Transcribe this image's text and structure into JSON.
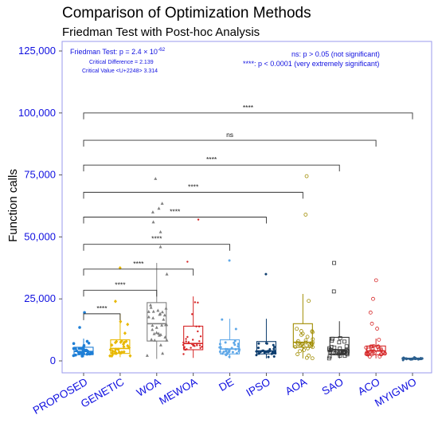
{
  "chart_data": {
    "type": "boxplot",
    "title": "Comparison of Optimization Methods",
    "subtitle": "Friedman Test with Post-hoc Analysis",
    "ylabel": "Function calls",
    "xlabel": "",
    "ylim": [
      -3000,
      130000
    ],
    "yticks": [
      0,
      25000,
      50000,
      75000,
      100000,
      125000
    ],
    "ytick_labels": [
      "0",
      "25,000",
      "50,000",
      "75,000",
      "100,000",
      "125,000"
    ],
    "grid": false,
    "categories": [
      "PROPOSED",
      "GENETIC",
      "WOA",
      "MEWOA",
      "DE",
      "IPSO",
      "AOA",
      "SAO",
      "ACO",
      "MYIGWO"
    ],
    "colors": [
      "#1f7fd6",
      "#e8b800",
      "#808080",
      "#d62728",
      "#5fa8e8",
      "#0d3d6e",
      "#a08c00",
      "#333333",
      "#d62728",
      "#2b5f8e"
    ],
    "markers": [
      "circle",
      "diamond",
      "triangle",
      "star",
      "dot",
      "dot",
      "circle-open",
      "square-open",
      "circle-open",
      "dot"
    ],
    "boxes": [
      {
        "min": 1500,
        "q1": 2500,
        "median": 3800,
        "q3": 5500,
        "max": 9000,
        "outliers": [
          13500,
          19500
        ]
      },
      {
        "min": 1500,
        "q1": 3000,
        "median": 5000,
        "q3": 8500,
        "max": 19000,
        "outliers": [
          24000,
          37500
        ]
      },
      {
        "min": 800,
        "q1": 8000,
        "median": 15000,
        "q3": 23500,
        "max": 39500,
        "outliers": [
          46000,
          52000,
          56000,
          60000,
          61500,
          63500,
          73500
        ]
      },
      {
        "min": 1200,
        "q1": 4500,
        "median": 7000,
        "q3": 14000,
        "max": 26000,
        "outliers": [
          40000,
          57000
        ]
      },
      {
        "min": 1000,
        "q1": 2800,
        "median": 4800,
        "q3": 8500,
        "max": 17000,
        "outliers": [
          40500
        ]
      },
      {
        "min": 1000,
        "q1": 2800,
        "median": 4000,
        "q3": 7800,
        "max": 17000,
        "outliers": [
          35000
        ]
      },
      {
        "min": 1000,
        "q1": 5500,
        "median": 7500,
        "q3": 15000,
        "max": 27000,
        "outliers": [
          59000,
          74500
        ]
      },
      {
        "min": 1000,
        "q1": 2500,
        "median": 4500,
        "q3": 9500,
        "max": 16000,
        "outliers": [
          28000,
          39500
        ]
      },
      {
        "min": 1000,
        "q1": 2500,
        "median": 4000,
        "q3": 6000,
        "max": 9000,
        "outliers": [
          13000,
          15000,
          19500,
          25000,
          32500
        ]
      },
      {
        "min": 300,
        "q1": 700,
        "median": 900,
        "q3": 1100,
        "max": 1400,
        "outliers": []
      }
    ],
    "comparisons": [
      {
        "from": "PROPOSED",
        "to": "GENETIC",
        "label": "****",
        "y": 19000
      },
      {
        "from": "PROPOSED",
        "to": "WOA",
        "label": "****",
        "y": 28500
      },
      {
        "from": "PROPOSED",
        "to": "MEWOA",
        "label": "****",
        "y": 37000
      },
      {
        "from": "PROPOSED",
        "to": "DE",
        "label": "****",
        "y": 47000
      },
      {
        "from": "PROPOSED",
        "to": "IPSO",
        "label": "****",
        "y": 58000
      },
      {
        "from": "PROPOSED",
        "to": "AOA",
        "label": "****",
        "y": 68000
      },
      {
        "from": "PROPOSED",
        "to": "SAO",
        "label": "****",
        "y": 79000
      },
      {
        "from": "PROPOSED",
        "to": "ACO",
        "label": "ns",
        "y": 89000
      },
      {
        "from": "PROPOSED",
        "to": "MYIGWO",
        "label": "****",
        "y": 100000
      }
    ],
    "annotations": {
      "friedman": "Friedman Test: p = 2.4 × 10",
      "friedman_exp": "-62",
      "critical_difference": "Critical Difference = 2.139",
      "critical_value": "Critical Value <U+2248> 3.314",
      "legend_ns": "ns:   p > 0.05 (not significant)",
      "legend_stars": "****: p < 0.0001 (very extremely significant)"
    }
  }
}
